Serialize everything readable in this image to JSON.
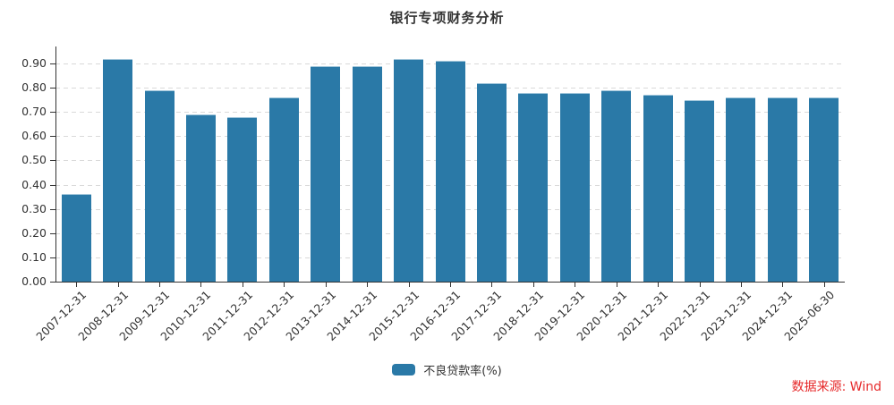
{
  "chart_data": {
    "type": "bar",
    "title": "银行专项财务分析",
    "categories": [
      "2007-12-31",
      "2008-12-31",
      "2009-12-31",
      "2010-12-31",
      "2011-12-31",
      "2012-12-31",
      "2013-12-31",
      "2014-12-31",
      "2015-12-31",
      "2016-12-31",
      "2017-12-31",
      "2018-12-31",
      "2019-12-31",
      "2020-12-31",
      "2021-12-31",
      "2022-12-31",
      "2023-12-31",
      "2024-12-31",
      "2025-06-30"
    ],
    "series": [
      {
        "name": "不良贷款率(%)",
        "values": [
          0.36,
          0.92,
          0.79,
          0.69,
          0.68,
          0.76,
          0.89,
          0.89,
          0.92,
          0.91,
          0.82,
          0.78,
          0.78,
          0.79,
          0.77,
          0.75,
          0.76,
          0.76,
          0.76
        ]
      }
    ],
    "xlabel": "",
    "ylabel": "",
    "ylim": [
      0,
      0.97
    ],
    "y_tick_labels": [
      "0.00",
      "0.10",
      "0.20",
      "0.30",
      "0.40",
      "0.50",
      "0.60",
      "0.70",
      "0.80",
      "0.90"
    ],
    "grid": "horizontal-dashed",
    "legend_position": "bottom-center",
    "colors": {
      "bar": "#2a79a7",
      "grid": "#d9d9d9",
      "axis": "#333333",
      "text": "#333333",
      "source_text": "#e62829"
    }
  },
  "legend": {
    "items": [
      {
        "label": "不良贷款率(%)",
        "swatch_color": "#2a79a7"
      }
    ]
  },
  "footer": {
    "source_label": "数据来源: Wind"
  }
}
